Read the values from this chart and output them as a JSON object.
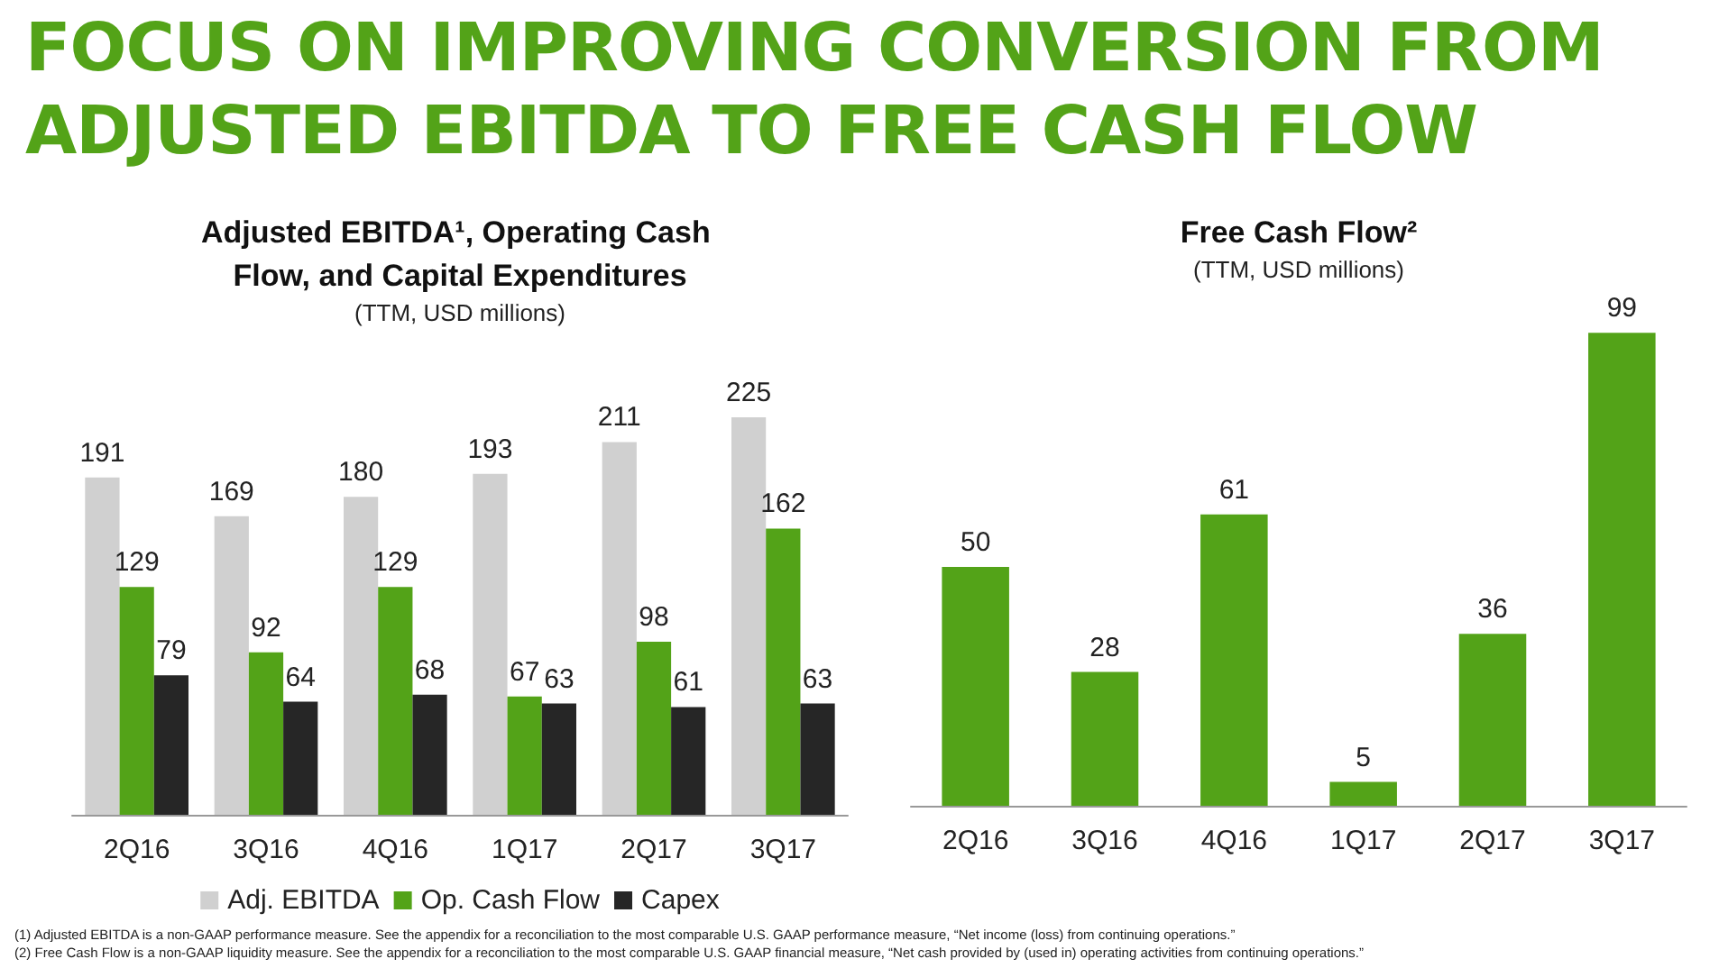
{
  "chart_data": [
    {
      "type": "bar",
      "title": "Adjusted EBITDA¹, Operating Cash Flow, and Capital Expenditures",
      "subtitle": "(TTM, USD millions)",
      "categories": [
        "2Q16",
        "3Q16",
        "4Q16",
        "1Q17",
        "2Q17",
        "3Q17"
      ],
      "series": [
        {
          "name": "Adj. EBITDA",
          "color": "#d0d0d0",
          "values": [
            191,
            169,
            180,
            193,
            211,
            225
          ]
        },
        {
          "name": "Op. Cash Flow",
          "color": "#53a318",
          "values": [
            129,
            92,
            129,
            67,
            98,
            162
          ]
        },
        {
          "name": "Capex",
          "color": "#262626",
          "values": [
            79,
            64,
            68,
            63,
            61,
            63
          ]
        }
      ],
      "data_labels": true,
      "legend": "bottom",
      "grid": false,
      "annotations": [
        "FOCUS ON IMPROVING CONVERSION FROM ADJUSTED EBITDA TO FREE CASH FLOW",
        "(1) Adjusted EBITDA is a non-GAAP performance measure.  See the appendix for a reconciliation to the most comparable U.S. GAAP performance measure, “Net income (loss) from continuing operations.”",
        "(2) Free Cash Flow is a non-GAAP liquidity measure.  See the appendix for a reconciliation to the most comparable U.S. GAAP financial measure, “Net cash provided by (used in) operating activities from continuing operations.”"
      ]
    },
    {
      "type": "bar",
      "title": "Free Cash Flow²",
      "subtitle": "(TTM, USD millions)",
      "categories": [
        "2Q16",
        "3Q16",
        "4Q16",
        "1Q17",
        "2Q17",
        "3Q17"
      ],
      "values": [
        50,
        28,
        61,
        5,
        36,
        99
      ],
      "color": "#53a318",
      "data_labels": true,
      "legend": false,
      "grid": false
    }
  ]
}
